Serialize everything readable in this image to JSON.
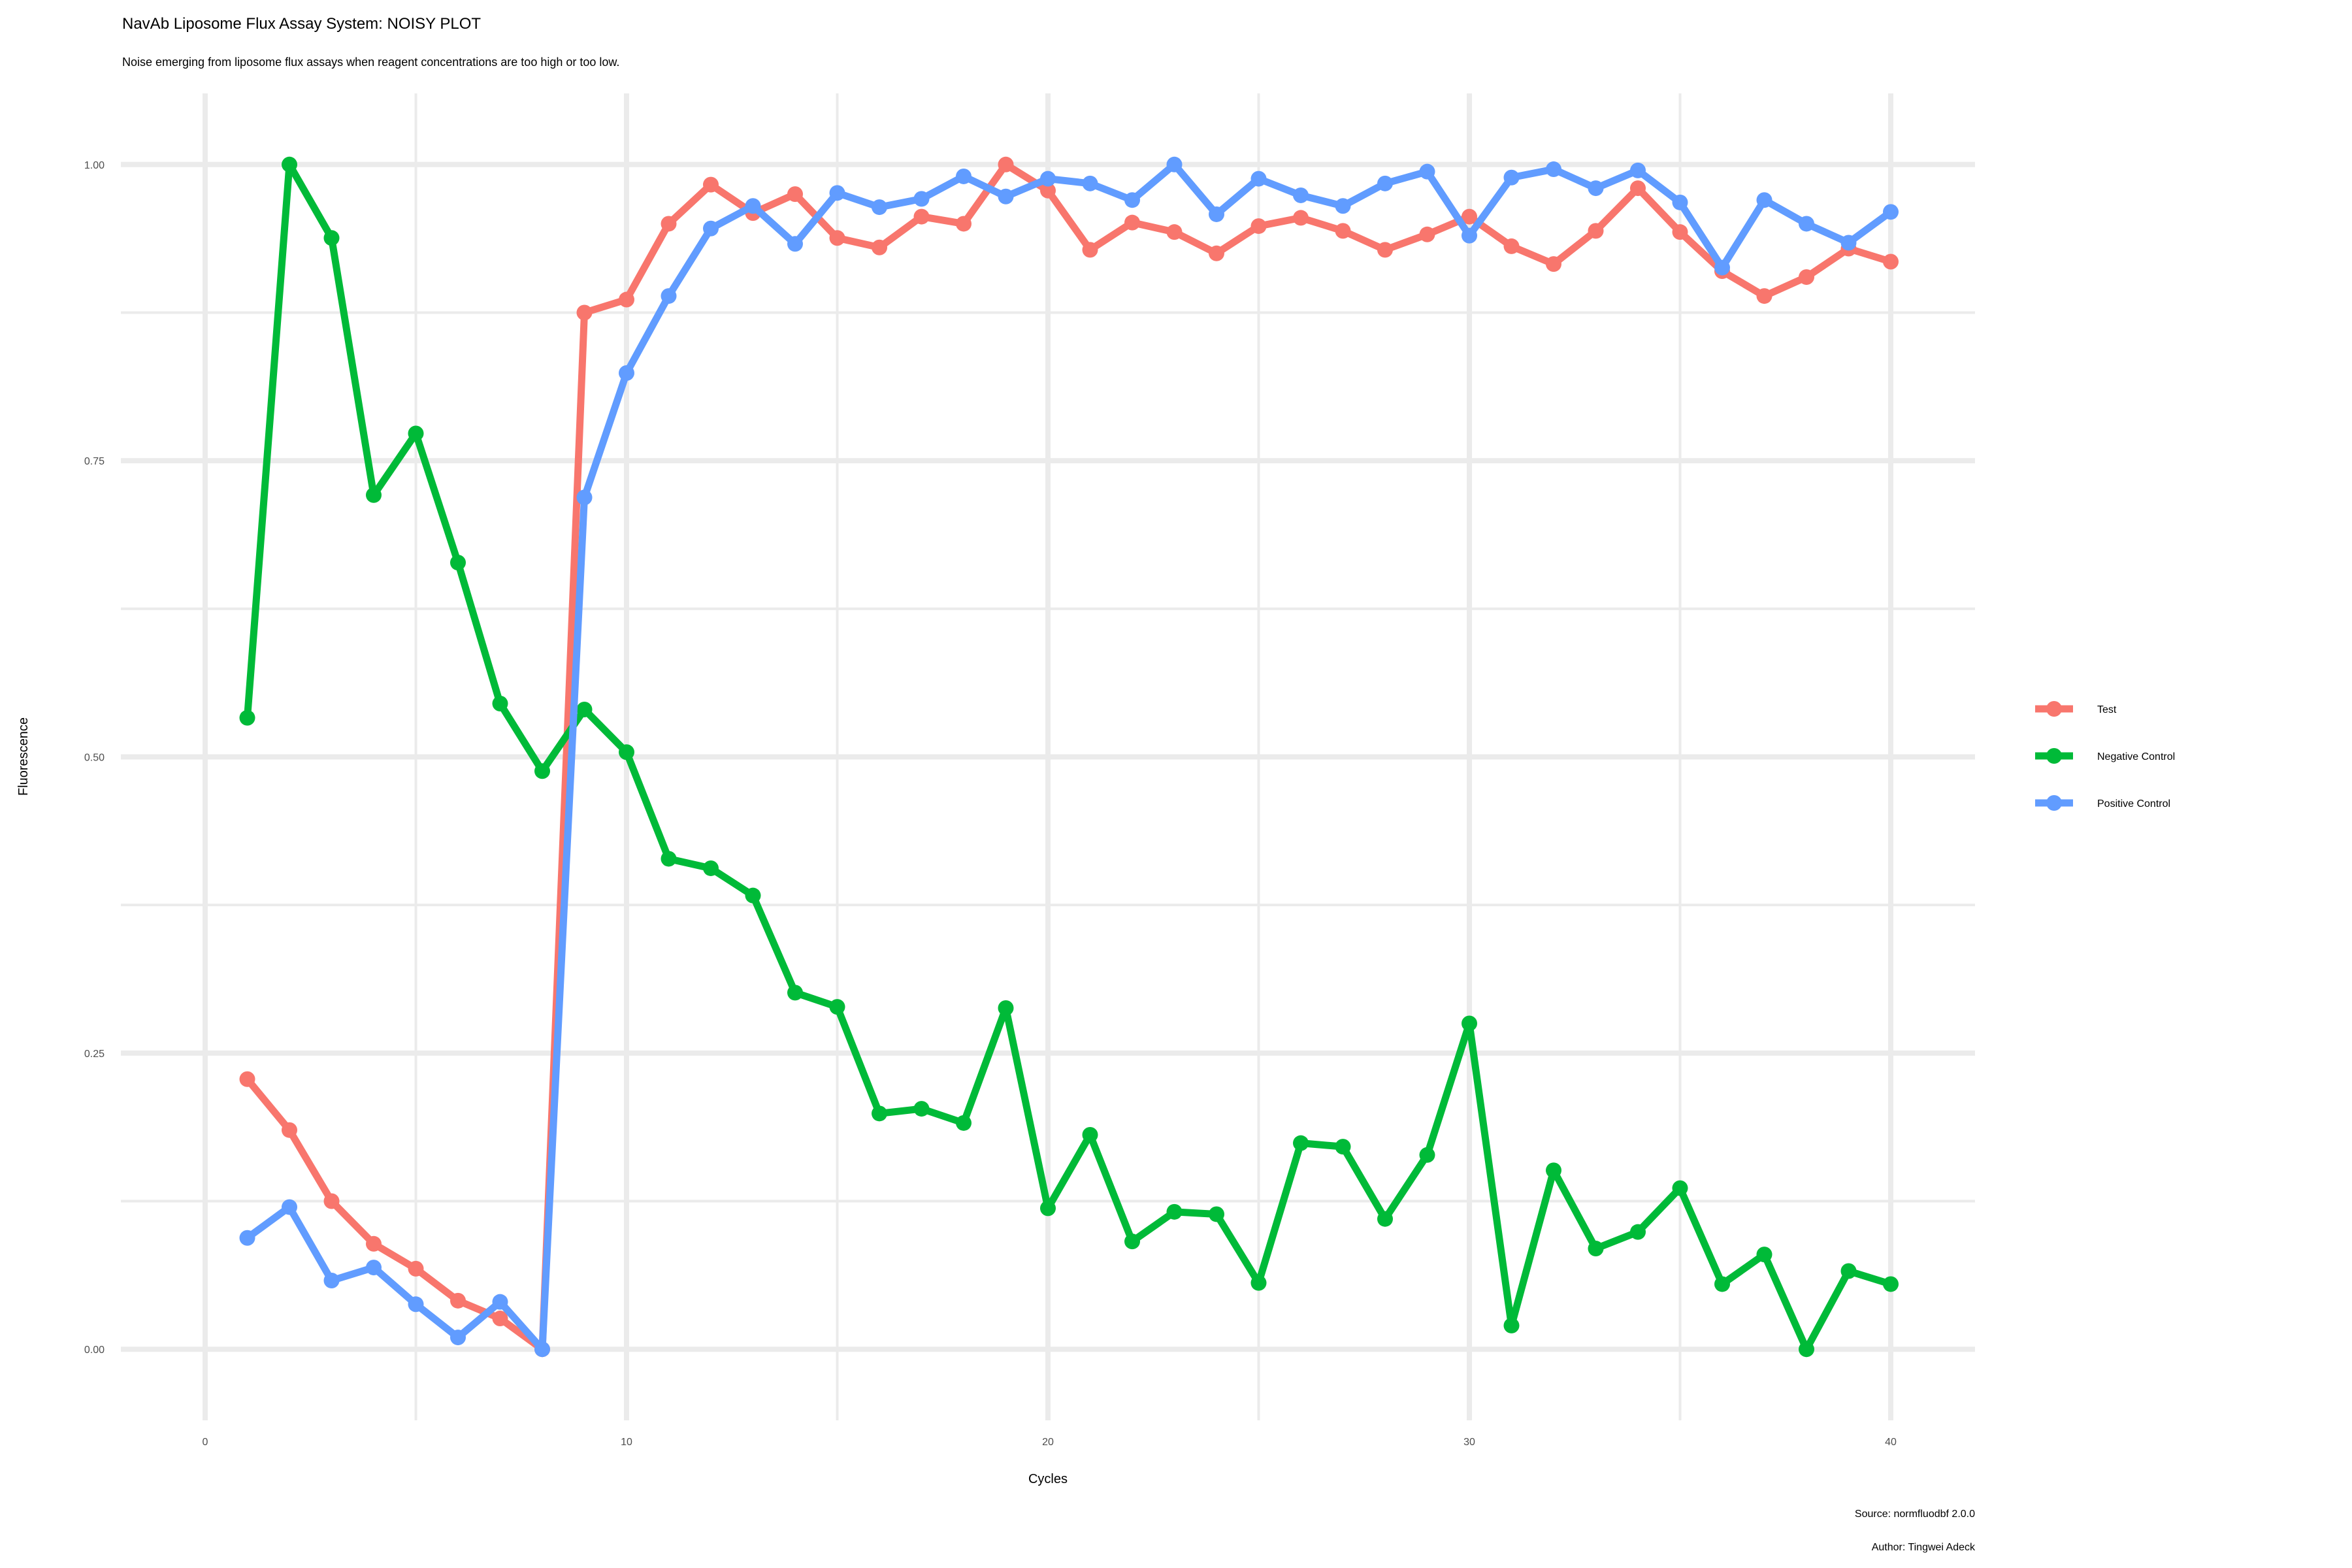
{
  "title": "NavAb Liposome Flux Assay System: NOISY PLOT",
  "subtitle": "Noise emerging from liposome flux assays when reagent concentrations are too high or too low.",
  "caption": [
    "Source: normfluodbf 2.0.0",
    "Author: Tingwei Adeck"
  ],
  "chart_data": {
    "type": "line",
    "title": "NavAb Liposome Flux Assay System: NOISY PLOT",
    "subtitle": "Noise emerging from liposome flux assays when reagent concentrations are too high or too low.",
    "xlabel": "Cycles",
    "ylabel": "Fluorescence",
    "xlim": [
      -2,
      42
    ],
    "ylim": [
      -0.06,
      1.06
    ],
    "xticks": [
      0,
      10,
      20,
      30,
      40
    ],
    "xtick_labels": [
      "0",
      "10",
      "20",
      "30",
      "40"
    ],
    "yticks": [
      0,
      0.25,
      0.5,
      0.75,
      1
    ],
    "ytick_labels": [
      "0.00",
      "0.25",
      "0.50",
      "0.75",
      "1.00"
    ],
    "grid": true,
    "legend_position": "right",
    "markers": true,
    "x": [
      1,
      2,
      3,
      4,
      5,
      6,
      7,
      8,
      9,
      10,
      11,
      12,
      13,
      14,
      15,
      16,
      17,
      18,
      19,
      20,
      21,
      22,
      23,
      24,
      25,
      26,
      27,
      28,
      29,
      30,
      31,
      32,
      33,
      34,
      35,
      36,
      37,
      38,
      39,
      40
    ],
    "series": [
      {
        "name": "Test",
        "color": "#F8766D",
        "values": [
          0.228,
          0.185,
          0.125,
          0.089,
          0.068,
          0.041,
          0.026,
          0,
          0.875,
          0.886,
          0.95,
          0.983,
          0.959,
          0.975,
          0.938,
          0.93,
          0.956,
          0.95,
          1.0,
          0.978,
          0.928,
          0.951,
          0.943,
          0.925,
          0.948,
          0.955,
          0.944,
          0.928,
          0.941,
          0.956,
          0.931,
          0.916,
          0.944,
          0.98,
          0.943,
          0.91,
          0.889,
          0.905,
          0.929,
          0.918
        ]
      },
      {
        "name": "Negative Control",
        "color": "#00BA38",
        "values": [
          0.533,
          1.0,
          0.938,
          0.721,
          0.773,
          0.664,
          0.545,
          0.488,
          0.54,
          0.504,
          0.414,
          0.406,
          0.383,
          0.301,
          0.289,
          0.199,
          0.203,
          0.191,
          0.288,
          0.119,
          0.181,
          0.091,
          0.116,
          0.114,
          0.056,
          0.174,
          0.171,
          0.11,
          0.164,
          0.275,
          0.02,
          0.151,
          0.085,
          0.099,
          0.136,
          0.055,
          0.08,
          0,
          0.066,
          0.055
        ]
      },
      {
        "name": "Positive Control",
        "color": "#619CFF",
        "values": [
          0.094,
          0.12,
          0.058,
          0.069,
          0.038,
          0.01,
          0.04,
          0,
          0.719,
          0.824,
          0.889,
          0.946,
          0.965,
          0.933,
          0.976,
          0.964,
          0.971,
          0.99,
          0.973,
          0.988,
          0.984,
          0.97,
          1.0,
          0.958,
          0.988,
          0.974,
          0.965,
          0.984,
          0.994,
          0.94,
          0.989,
          0.996,
          0.98,
          0.995,
          0.968,
          0.913,
          0.97,
          0.95,
          0.934,
          0.96
        ]
      }
    ]
  }
}
